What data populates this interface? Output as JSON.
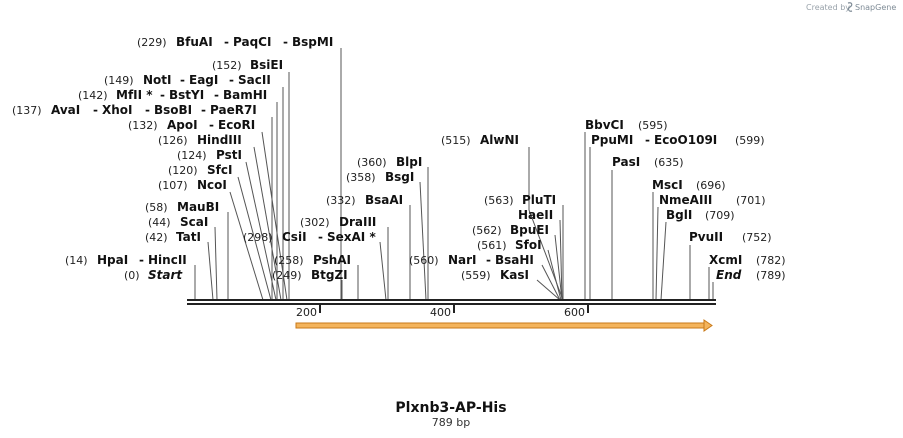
{
  "credit": {
    "prefix": "Created by",
    "brand": "SnapGene"
  },
  "title": "Plxnb3-AP-His",
  "length_label": "789 bp",
  "ruler_ticks": [
    "200",
    "400",
    "600"
  ],
  "sites": [
    {
      "pos": "(229)",
      "names": [
        "BfuAI",
        "PaqCI",
        "BspMI"
      ]
    },
    {
      "pos": "(152)",
      "names": [
        "BsiEI"
      ]
    },
    {
      "pos": "(149)",
      "names": [
        "NotI",
        "EagI",
        "SacII"
      ]
    },
    {
      "pos": "(142)",
      "names": [
        "MfII *",
        "BstYI",
        "BamHI"
      ]
    },
    {
      "pos": "(137)",
      "names": [
        "AvaI",
        "XhoI",
        "BsoBI",
        "PaeR7I"
      ]
    },
    {
      "pos": "(132)",
      "names": [
        "ApoI",
        "EcoRI"
      ]
    },
    {
      "pos": "(126)",
      "names": [
        "HindIII"
      ]
    },
    {
      "pos": "(124)",
      "names": [
        "PstI"
      ]
    },
    {
      "pos": "(120)",
      "names": [
        "SfcI"
      ]
    },
    {
      "pos": "(107)",
      "names": [
        "NcoI"
      ]
    },
    {
      "pos": "(58)",
      "names": [
        "MauBI"
      ]
    },
    {
      "pos": "(44)",
      "names": [
        "ScaI"
      ]
    },
    {
      "pos": "(42)",
      "names": [
        "TatI"
      ]
    },
    {
      "pos": "(14)",
      "names": [
        "HpaI",
        "HincII"
      ]
    },
    {
      "pos": "(0)",
      "names": [
        "Start"
      ]
    },
    {
      "pos": "(360)",
      "names": [
        "BlpI"
      ]
    },
    {
      "pos": "(358)",
      "names": [
        "BsgI"
      ]
    },
    {
      "pos": "(332)",
      "names": [
        "BsaAI"
      ]
    },
    {
      "pos": "(302)",
      "names": [
        "DraIII"
      ]
    },
    {
      "pos": "(298)",
      "names": [
        "CsiI",
        "SexAI *"
      ]
    },
    {
      "pos": "(258)",
      "names": [
        "PshAI"
      ]
    },
    {
      "pos": "(249)",
      "names": [
        "BtgZI"
      ]
    },
    {
      "pos": "(515)",
      "names": [
        "AlwNI"
      ]
    },
    {
      "pos": "(563)",
      "names": [
        "PluTI"
      ]
    },
    {
      "pos": "",
      "names": [
        "HaeII"
      ]
    },
    {
      "pos": "(562)",
      "names": [
        "BpuEI"
      ]
    },
    {
      "pos": "(561)",
      "names": [
        "SfoI"
      ]
    },
    {
      "pos": "(560)",
      "names": [
        "NarI",
        "BsaHI"
      ]
    },
    {
      "pos": "(559)",
      "names": [
        "KasI"
      ]
    },
    {
      "pos": "(595)",
      "names": [
        "BbvCI"
      ]
    },
    {
      "pos": "(599)",
      "names": [
        "PpuMI",
        "EcoO109I"
      ]
    },
    {
      "pos": "(635)",
      "names": [
        "PasI"
      ]
    },
    {
      "pos": "(696)",
      "names": [
        "MscI"
      ]
    },
    {
      "pos": "(701)",
      "names": [
        "NmeAIII"
      ]
    },
    {
      "pos": "(709)",
      "names": [
        "BglI"
      ]
    },
    {
      "pos": "(752)",
      "names": [
        "PvuII"
      ]
    },
    {
      "pos": "(782)",
      "names": [
        "XcmI"
      ]
    },
    {
      "pos": "(789)",
      "names": [
        "End"
      ]
    }
  ],
  "feature": {
    "start": 160,
    "end": 789,
    "color": "#f0a040"
  }
}
